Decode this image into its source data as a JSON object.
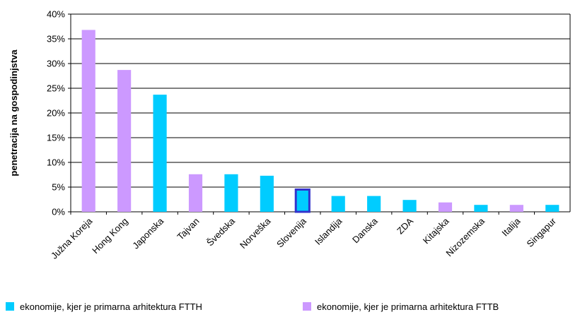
{
  "chart_data": {
    "type": "bar",
    "y_label": "penetracija na gospodinjstva",
    "categories": [
      "Južna Koreja",
      "Hong Kong",
      "Japonska",
      "Tajvan",
      "Švedska",
      "Norveška",
      "Slovenija",
      "Islandija",
      "Danska",
      "ZDA",
      "Kitajska",
      "Nizozemska",
      "Italija",
      "Singapur"
    ],
    "series": [
      {
        "name": "ekonomije, kjer je primarna arhitektura FTTH",
        "color": "#00ccff",
        "values": [
          null,
          null,
          23.7,
          null,
          7.6,
          7.3,
          4.5,
          3.2,
          3.2,
          2.4,
          null,
          1.4,
          null,
          1.4
        ]
      },
      {
        "name": "ekonomije, kjer je primarna arhitektura FTTB",
        "color": "#cc99ff",
        "values": [
          36.8,
          28.7,
          null,
          7.6,
          null,
          null,
          null,
          null,
          null,
          null,
          1.9,
          null,
          1.4,
          null
        ]
      }
    ],
    "highlight": "Slovenija",
    "highlight_color": "#3333cc",
    "ylim": [
      0,
      40
    ],
    "yticks": [
      {
        "value": 0,
        "label": "0%"
      },
      {
        "value": 5,
        "label": "5%"
      },
      {
        "value": 10,
        "label": "10%"
      },
      {
        "value": 15,
        "label": "15%"
      },
      {
        "value": 20,
        "label": "20%"
      },
      {
        "value": 25,
        "label": "25%"
      },
      {
        "value": 30,
        "label": "30%"
      },
      {
        "value": 35,
        "label": "35%"
      },
      {
        "value": 40,
        "label": "40%"
      }
    ],
    "grid": true
  }
}
